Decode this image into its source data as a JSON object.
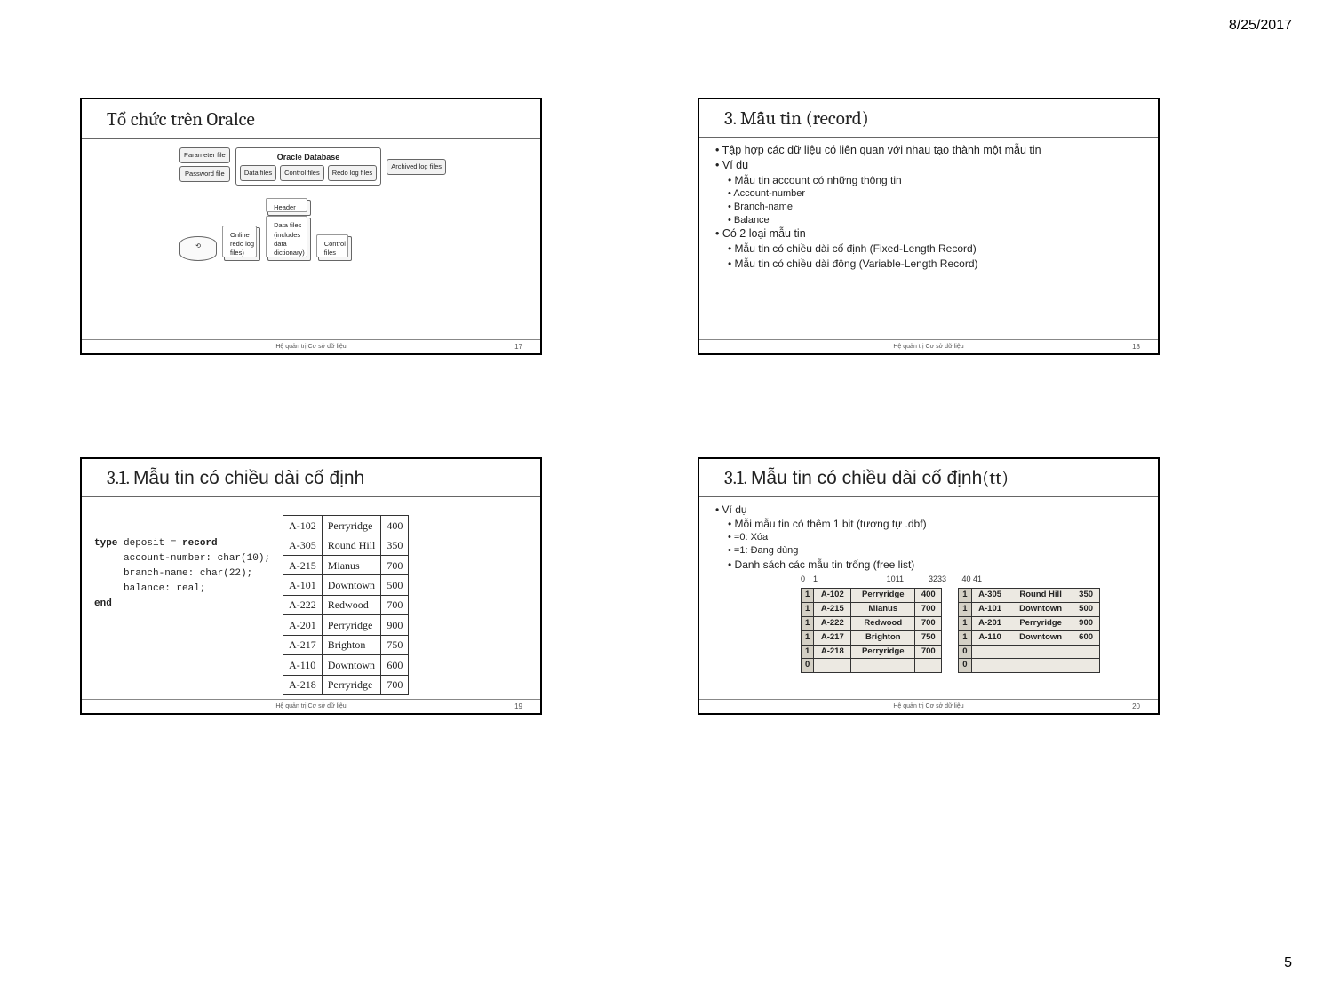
{
  "page": {
    "date": "8/25/2017",
    "number": "5"
  },
  "footer_text": "Hệ quản trị Cơ sở dữ liệu",
  "slide17": {
    "title": "Tổ chức trên Oralce",
    "num": "17",
    "diagram": {
      "top_label": "Oracle Database",
      "top_boxes": [
        "Data files",
        "Control files",
        "Redo log files"
      ],
      "side_left": [
        "Parameter file",
        "Password file"
      ],
      "side_right": "Archived log files",
      "bottom": {
        "cyl": "",
        "online": "Online\nredo log\nfiles)",
        "header": "Header",
        "data_files": "Data files\n(includes\ndata\ndictionary)",
        "control": "Control\nfiles"
      }
    }
  },
  "slide18": {
    "title": "3. Mẫu tin (record)",
    "num": "18",
    "b1_1": "Tập hợp các dữ liệu có liên quan với nhau tạo thành một mẫu tin",
    "b1_2": "Ví dụ",
    "b2_1": "Mẫu tin account có những thông tin",
    "b3_1": "Account-number",
    "b3_2": "Branch-name",
    "b3_3": "Balance",
    "b1_3": "Có 2 loại mẫu tin",
    "b2_2": "Mẫu tin có chiều dài cố định (Fixed-Length Record)",
    "b2_3": "Mẫu tin có chiều dài động (Variable-Length Record)"
  },
  "slide19": {
    "title": "3.1. Mẫu tin có chiều dài cố định",
    "num": "19",
    "code": "type deposit = record\n     account-number: char(10);\n     branch-name: char(22);\n     balance: real;\nend",
    "rows": [
      [
        "A-102",
        "Perryridge",
        "400"
      ],
      [
        "A-305",
        "Round Hill",
        "350"
      ],
      [
        "A-215",
        "Mianus",
        "700"
      ],
      [
        "A-101",
        "Downtown",
        "500"
      ],
      [
        "A-222",
        "Redwood",
        "700"
      ],
      [
        "A-201",
        "Perryridge",
        "900"
      ],
      [
        "A-217",
        "Brighton",
        "750"
      ],
      [
        "A-110",
        "Downtown",
        "600"
      ],
      [
        "A-218",
        "Perryridge",
        "700"
      ]
    ]
  },
  "slide20": {
    "title": "3.1. Mẫu tin có chiều dài cố định(tt)",
    "num": "20",
    "b1": "Ví dụ",
    "b2_1": "Mỗi mẫu tin có thêm 1 bit (tương tự .dbf)",
    "b3_1": "=0: Xóa",
    "b3_2": "=1: Đang dùng",
    "b2_2": "Danh sách các mẫu tin trống (free list)",
    "offsets": [
      "0",
      "1",
      "1011",
      "3233",
      "40 41"
    ],
    "left_rows": [
      [
        "1",
        "A-102",
        "Perryridge",
        "400"
      ],
      [
        "1",
        "A-215",
        "Mianus",
        "700"
      ],
      [
        "1",
        "A-222",
        "Redwood",
        "700"
      ],
      [
        "1",
        "A-217",
        "Brighton",
        "750"
      ],
      [
        "1",
        "A-218",
        "Perryridge",
        "700"
      ],
      [
        "0",
        "",
        "",
        ""
      ]
    ],
    "right_rows": [
      [
        "1",
        "A-305",
        "Round Hill",
        "350"
      ],
      [
        "1",
        "A-101",
        "Downtown",
        "500"
      ],
      [
        "1",
        "A-201",
        "Perryridge",
        "900"
      ],
      [
        "1",
        "A-110",
        "Downtown",
        "600"
      ],
      [
        "0",
        "",
        "",
        ""
      ],
      [
        "0",
        "",
        "",
        ""
      ]
    ]
  }
}
